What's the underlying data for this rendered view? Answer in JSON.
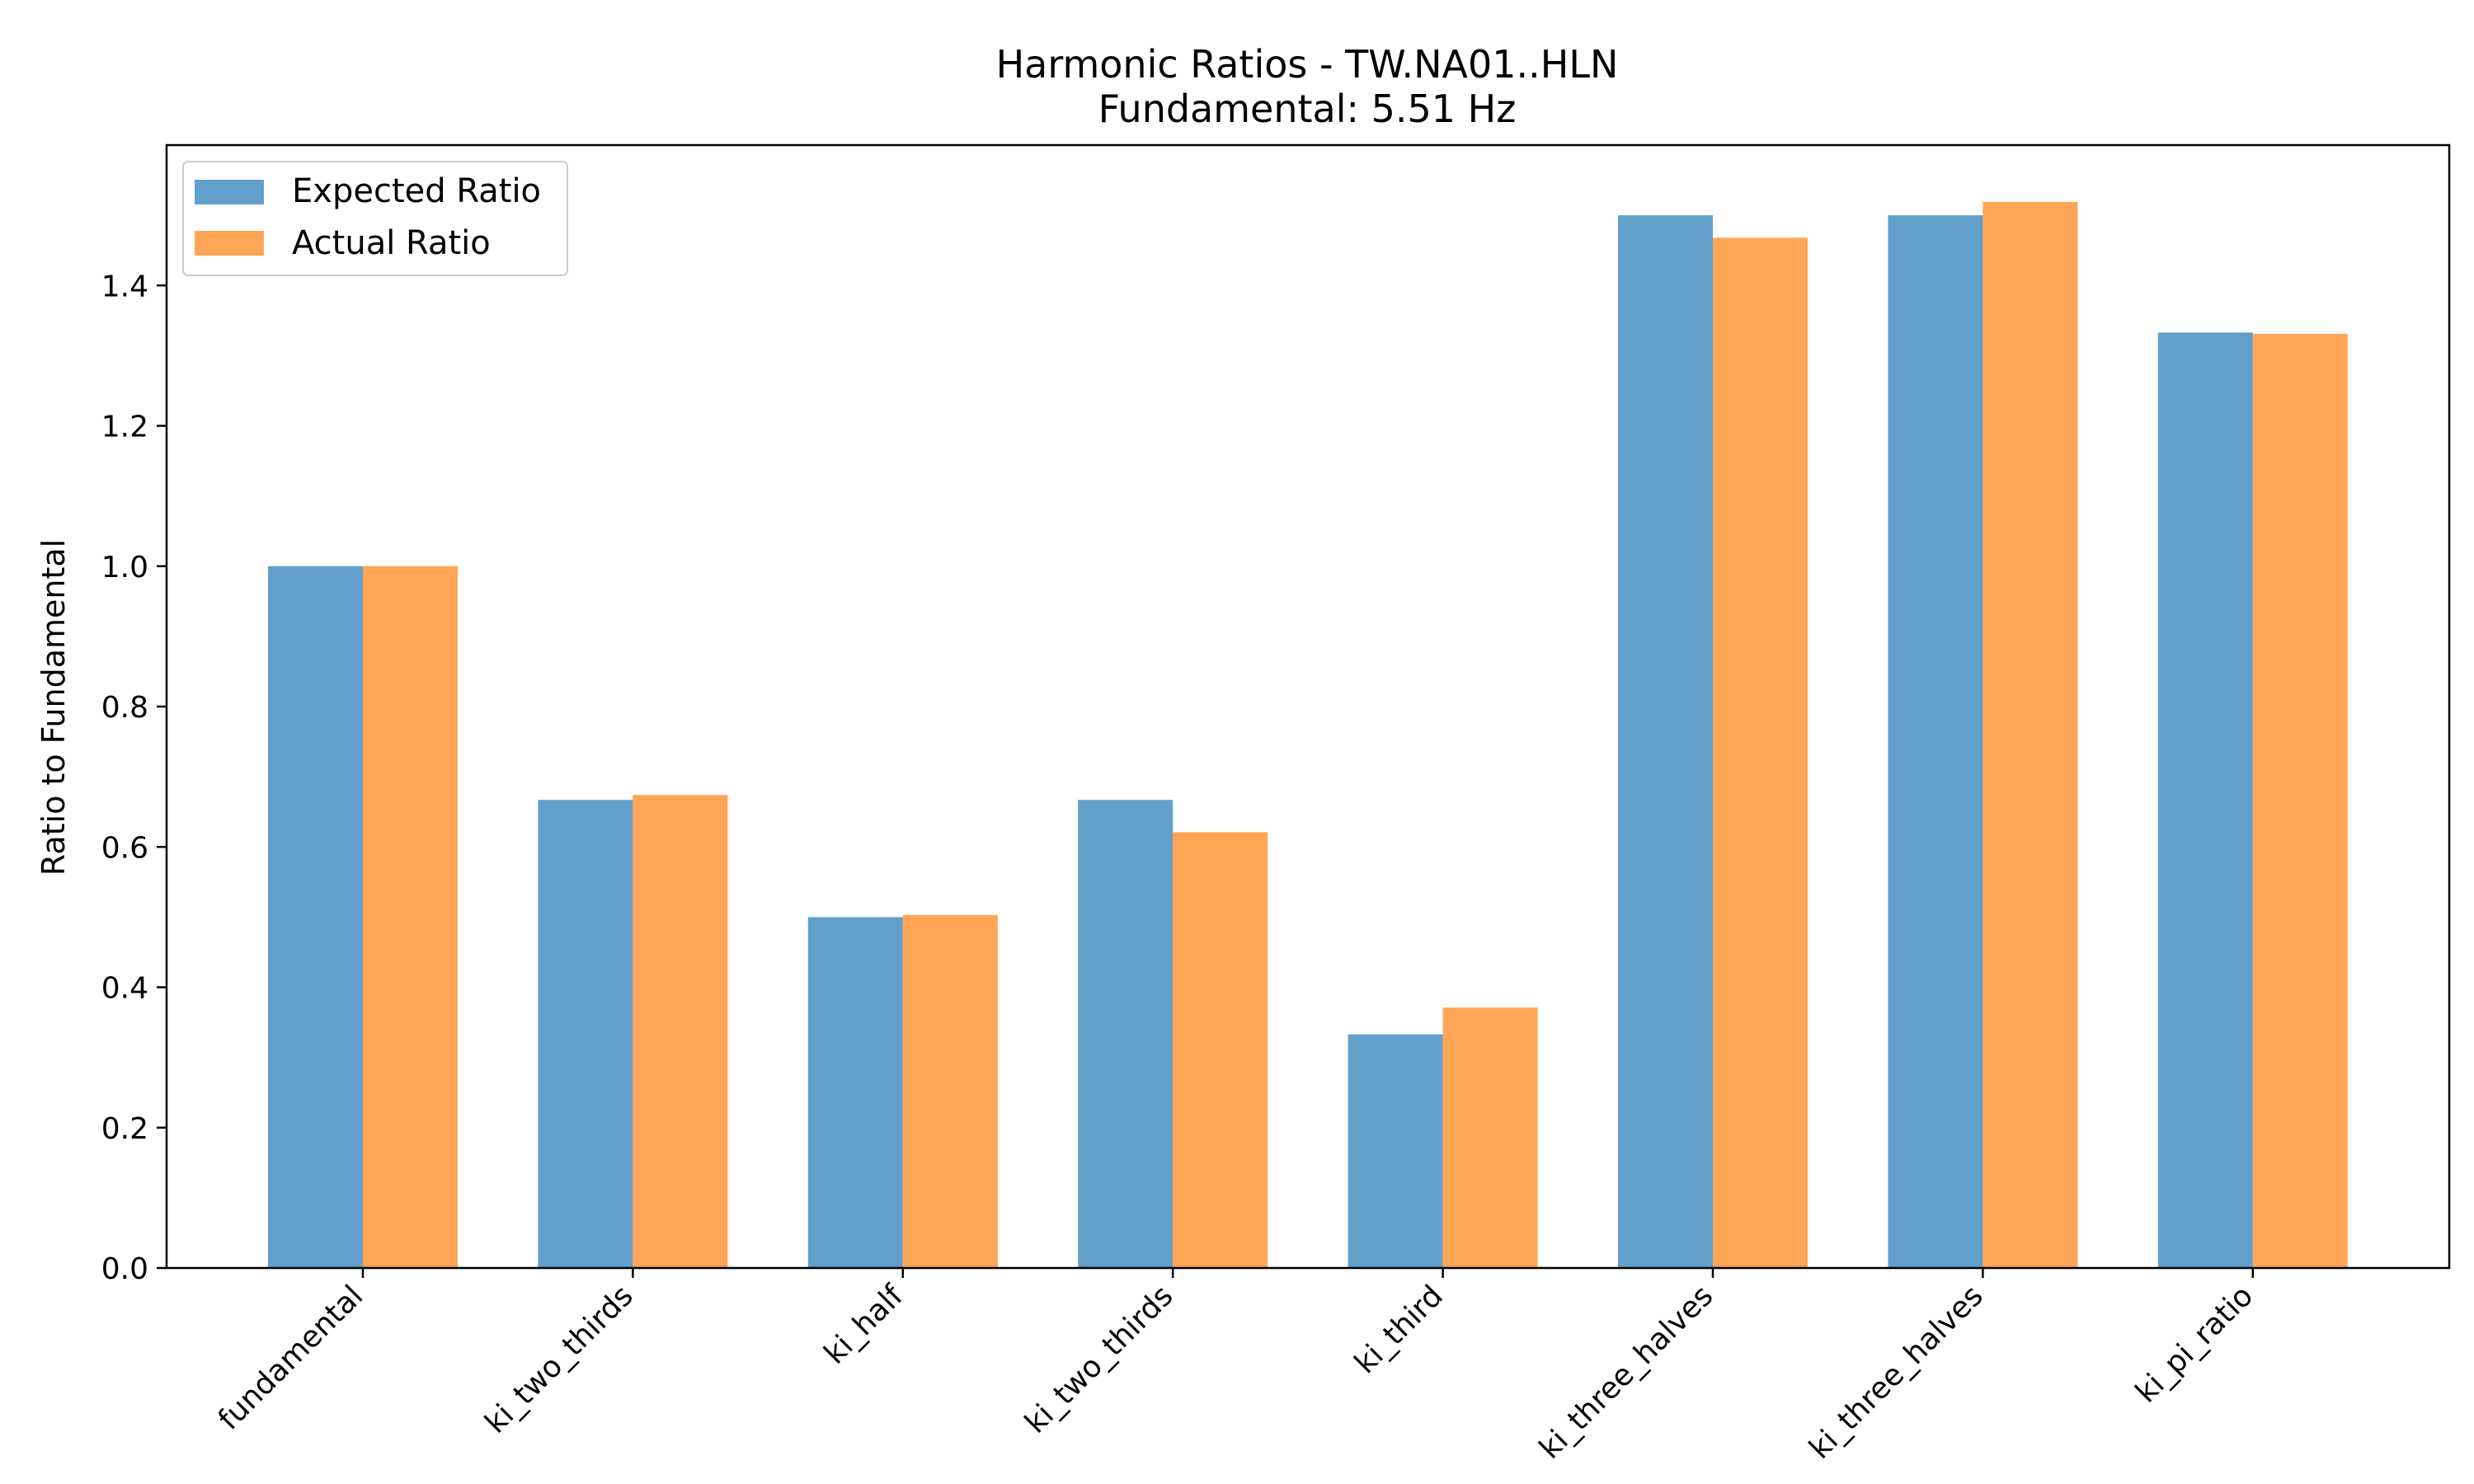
{
  "chart_data": {
    "type": "bar",
    "title": "Harmonic Ratios - TW.NA01..HLN",
    "subtitle": "Fundamental: 5.51 Hz",
    "xlabel": "",
    "ylabel": "Ratio to Fundamental",
    "categories": [
      "fundamental",
      "ki_two_thirds",
      "ki_half",
      "ki_two_thirds",
      "ki_third",
      "ki_three_halves",
      "ki_three_halves",
      "ki_pi_ratio"
    ],
    "series": [
      {
        "name": "Expected Ratio",
        "color": "#62a0cb",
        "values": [
          1.0,
          0.667,
          0.5,
          0.667,
          0.333,
          1.5,
          1.5,
          1.333
        ]
      },
      {
        "name": "Actual Ratio",
        "color": "#ffa556",
        "values": [
          1.0,
          0.674,
          0.503,
          0.621,
          0.371,
          1.468,
          1.519,
          1.331
        ]
      }
    ],
    "ylim": [
      0,
      1.6
    ],
    "yticks": [
      "0.0",
      "0.2",
      "0.4",
      "0.6",
      "0.8",
      "1.0",
      "1.2",
      "1.4"
    ],
    "legend_position": "top-left",
    "grid": false
  }
}
